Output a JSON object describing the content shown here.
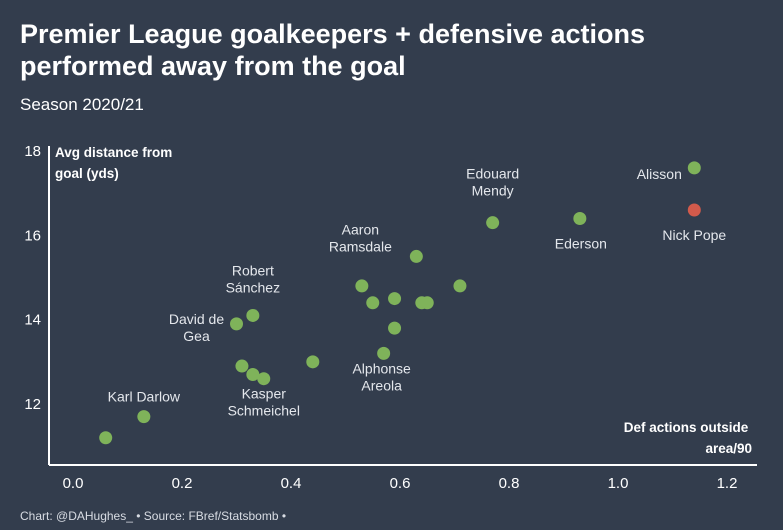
{
  "header": {
    "title": "Premier League goalkeepers + defensive actions performed away from the goal",
    "subtitle": "Season 2020/21"
  },
  "footer": {
    "source": "Chart: @DAHughes_ • Source: FBref/Statsbomb •"
  },
  "colors": {
    "background": "#333d4d",
    "point_default": "#7fb35a",
    "point_highlight": "#d25a4b",
    "axis": "#ffffff"
  },
  "chart_data": {
    "type": "scatter",
    "title": "Premier League goalkeepers + defensive actions performed away from the goal",
    "subtitle": "Season 2020/21",
    "xlabel": "Def actions outside area/90",
    "ylabel": "Avg distance from goal (yds)",
    "xlim": [
      -0.05,
      1.25
    ],
    "ylim": [
      11.2,
      18.2
    ],
    "xticks": [
      "0.0",
      "0.2",
      "0.4",
      "0.6",
      "0.8",
      "1.0",
      "1.2"
    ],
    "yticks": [
      "12",
      "14",
      "16",
      "18"
    ],
    "grid": false,
    "points": [
      {
        "x": 0.06,
        "y": 11.2,
        "label": "",
        "highlight": false
      },
      {
        "x": 0.13,
        "y": 11.7,
        "label": "Karl Darlow",
        "highlight": false
      },
      {
        "x": 0.3,
        "y": 13.9,
        "label": "David de Gea",
        "highlight": false
      },
      {
        "x": 0.33,
        "y": 14.1,
        "label": "Robert Sánchez",
        "highlight": false
      },
      {
        "x": 0.31,
        "y": 12.9,
        "label": "",
        "highlight": false
      },
      {
        "x": 0.33,
        "y": 12.7,
        "label": "",
        "highlight": false
      },
      {
        "x": 0.35,
        "y": 12.6,
        "label": "Kasper Schmeichel",
        "highlight": false
      },
      {
        "x": 0.44,
        "y": 13.0,
        "label": "",
        "highlight": false
      },
      {
        "x": 0.53,
        "y": 14.8,
        "label": "",
        "highlight": false
      },
      {
        "x": 0.55,
        "y": 14.4,
        "label": "",
        "highlight": false
      },
      {
        "x": 0.57,
        "y": 13.2,
        "label": "Alphonse Areola",
        "highlight": false
      },
      {
        "x": 0.59,
        "y": 14.5,
        "label": "",
        "highlight": false
      },
      {
        "x": 0.59,
        "y": 13.8,
        "label": "",
        "highlight": false
      },
      {
        "x": 0.63,
        "y": 15.5,
        "label": "Aaron Ramsdale",
        "highlight": false
      },
      {
        "x": 0.64,
        "y": 14.4,
        "label": "",
        "highlight": false
      },
      {
        "x": 0.65,
        "y": 14.4,
        "label": "",
        "highlight": false
      },
      {
        "x": 0.71,
        "y": 14.8,
        "label": "",
        "highlight": false
      },
      {
        "x": 0.77,
        "y": 16.3,
        "label": "Edouard Mendy",
        "highlight": false
      },
      {
        "x": 0.93,
        "y": 16.4,
        "label": "Ederson",
        "highlight": false
      },
      {
        "x": 1.14,
        "y": 17.6,
        "label": "Alisson",
        "highlight": false
      },
      {
        "x": 1.14,
        "y": 16.6,
        "label": "Nick Pope",
        "highlight": true
      }
    ]
  }
}
